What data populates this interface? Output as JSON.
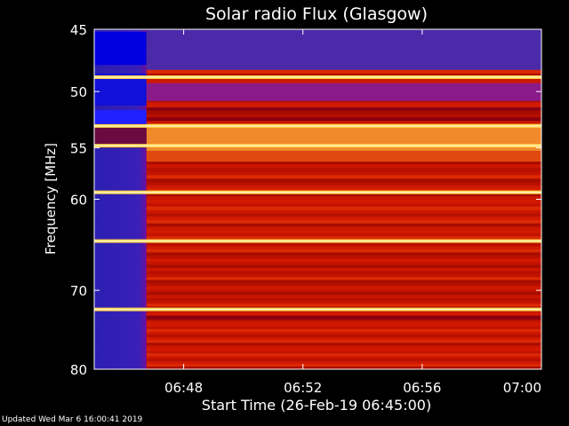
{
  "chart_data": {
    "type": "heatmap",
    "title": "Solar radio Flux (Glasgow)",
    "xlabel": "Start Time (26-Feb-19 06:45:00)",
    "ylabel": "Frequency [MHz]",
    "x_unit": "UT time",
    "xlim": [
      "06:45",
      "07:00"
    ],
    "ylim": [
      45,
      80
    ],
    "y_scale": "log",
    "x_ticks": [
      "06:48",
      "06:52",
      "06:56",
      "07:00"
    ],
    "y_ticks": [
      45,
      50,
      55,
      60,
      70,
      80
    ],
    "colormap": "black-red-orange-yellow-white",
    "pre_observation_end_time": "06:46:45",
    "bright_bands_mhz": [
      48.8,
      53.0,
      54.8,
      59.3,
      64.4,
      72.3
    ],
    "dark_bands_mhz": [
      51.5,
      52.4,
      73.3
    ],
    "colors": {
      "background": "#000000",
      "pre_observation": "#2a1fb0",
      "base": "#c81400",
      "bright": "#ffd24a"
    }
  },
  "footer": {
    "updated": "Updated Wed Mar  6 16:00:41 2019"
  }
}
